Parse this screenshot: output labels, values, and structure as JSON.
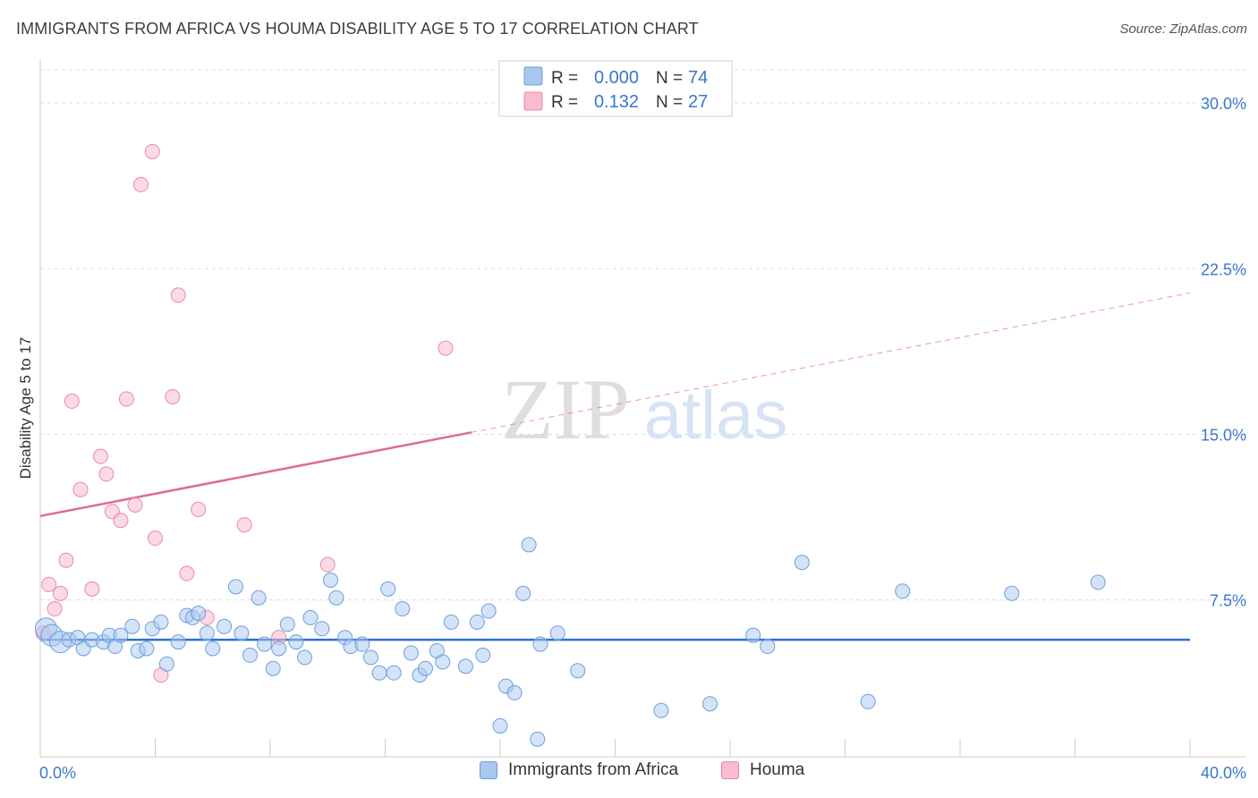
{
  "title": "IMMIGRANTS FROM AFRICA VS HOUMA DISABILITY AGE 5 TO 17 CORRELATION CHART",
  "source": "Source: ZipAtlas.com",
  "watermark": {
    "zip": "ZIP",
    "atlas": "atlas"
  },
  "colors": {
    "blue_fill": "#a9c8f0",
    "blue_stroke": "#6d9fdc",
    "blue_line": "#2f6fd1",
    "pink_fill": "#f7bccd",
    "pink_stroke": "#e88aa8",
    "pink_line": "#e06a91",
    "grid": "#dcdcdc",
    "axis_text": "#3a78c9"
  },
  "legend": [
    {
      "r_label": "R =",
      "r_value": "0.000",
      "n_label": "N =",
      "n_value": "74"
    },
    {
      "r_label": "R =",
      "r_value": "0.132",
      "n_label": "N =",
      "n_value": "27"
    }
  ],
  "series_labels": [
    "Immigrants from Africa",
    "Houma"
  ],
  "chart_data": {
    "type": "scatter",
    "title": "IMMIGRANTS FROM AFRICA VS HOUMA DISABILITY AGE 5 TO 17 CORRELATION CHART",
    "xlabel": "",
    "ylabel": "Disability Age 5 to 17",
    "xlim": [
      0,
      40
    ],
    "ylim": [
      0.4,
      31.5
    ],
    "x_tick_labels": [
      "0.0%",
      "40.0%"
    ],
    "y_ticks": [
      7.5,
      15.0,
      22.5,
      30.0
    ],
    "y_tick_labels": [
      "7.5%",
      "15.0%",
      "22.5%",
      "30.0%"
    ],
    "grid": true,
    "series": [
      {
        "name": "Immigrants from Africa",
        "r": 0.0,
        "n": 74,
        "trend": {
          "x0": 0,
          "y0": 5.7,
          "x1": 40,
          "y1": 5.7
        },
        "points": [
          [
            0.2,
            6.2
          ],
          [
            0.4,
            5.9
          ],
          [
            0.7,
            5.6
          ],
          [
            1.0,
            5.7
          ],
          [
            1.3,
            5.8
          ],
          [
            1.5,
            5.3
          ],
          [
            1.8,
            5.7
          ],
          [
            2.2,
            5.6
          ],
          [
            2.4,
            5.9
          ],
          [
            2.6,
            5.4
          ],
          [
            2.8,
            5.9
          ],
          [
            3.2,
            6.3
          ],
          [
            3.4,
            5.2
          ],
          [
            3.7,
            5.3
          ],
          [
            3.9,
            6.2
          ],
          [
            4.2,
            6.5
          ],
          [
            4.4,
            4.6
          ],
          [
            4.8,
            5.6
          ],
          [
            5.1,
            6.8
          ],
          [
            5.3,
            6.7
          ],
          [
            5.5,
            6.9
          ],
          [
            5.8,
            6.0
          ],
          [
            6.0,
            5.3
          ],
          [
            6.4,
            6.3
          ],
          [
            6.8,
            8.1
          ],
          [
            7.0,
            6.0
          ],
          [
            7.3,
            5.0
          ],
          [
            7.6,
            7.6
          ],
          [
            7.8,
            5.5
          ],
          [
            8.1,
            4.4
          ],
          [
            8.3,
            5.3
          ],
          [
            8.6,
            6.4
          ],
          [
            8.9,
            5.6
          ],
          [
            9.2,
            4.9
          ],
          [
            9.4,
            6.7
          ],
          [
            9.8,
            6.2
          ],
          [
            10.1,
            8.4
          ],
          [
            10.3,
            7.6
          ],
          [
            10.6,
            5.8
          ],
          [
            10.8,
            5.4
          ],
          [
            11.2,
            5.5
          ],
          [
            11.5,
            4.9
          ],
          [
            11.8,
            4.2
          ],
          [
            12.1,
            8.0
          ],
          [
            12.3,
            4.2
          ],
          [
            12.6,
            7.1
          ],
          [
            12.9,
            5.1
          ],
          [
            13.2,
            4.1
          ],
          [
            13.4,
            4.4
          ],
          [
            13.8,
            5.2
          ],
          [
            14.0,
            4.7
          ],
          [
            14.3,
            6.5
          ],
          [
            14.8,
            4.5
          ],
          [
            15.2,
            6.5
          ],
          [
            15.4,
            5.0
          ],
          [
            15.6,
            7.0
          ],
          [
            16.0,
            1.8
          ],
          [
            16.2,
            3.6
          ],
          [
            16.5,
            3.3
          ],
          [
            16.8,
            7.8
          ],
          [
            17.0,
            10.0
          ],
          [
            17.3,
            1.2
          ],
          [
            17.4,
            5.5
          ],
          [
            18.0,
            6.0
          ],
          [
            18.7,
            4.3
          ],
          [
            21.6,
            2.5
          ],
          [
            23.3,
            2.8
          ],
          [
            24.8,
            5.9
          ],
          [
            25.3,
            5.4
          ],
          [
            26.5,
            9.2
          ],
          [
            28.8,
            2.9
          ],
          [
            30.0,
            7.9
          ],
          [
            33.8,
            7.8
          ],
          [
            36.8,
            8.3
          ]
        ]
      },
      {
        "name": "Houma",
        "r": 0.132,
        "n": 27,
        "trend": {
          "x0": 0,
          "y0": 11.3,
          "x1": 40,
          "y1": 21.4,
          "solid_until_x": 15.0
        },
        "points": [
          [
            0.1,
            6.0
          ],
          [
            0.3,
            8.2
          ],
          [
            0.5,
            7.1
          ],
          [
            0.7,
            7.8
          ],
          [
            0.9,
            9.3
          ],
          [
            1.1,
            16.5
          ],
          [
            1.4,
            12.5
          ],
          [
            1.8,
            8.0
          ],
          [
            2.1,
            14.0
          ],
          [
            2.3,
            13.2
          ],
          [
            2.5,
            11.5
          ],
          [
            2.8,
            11.1
          ],
          [
            3.0,
            16.6
          ],
          [
            3.3,
            11.8
          ],
          [
            3.5,
            26.3
          ],
          [
            3.9,
            27.8
          ],
          [
            4.0,
            10.3
          ],
          [
            4.2,
            4.1
          ],
          [
            4.6,
            16.7
          ],
          [
            4.8,
            21.3
          ],
          [
            5.1,
            8.7
          ],
          [
            5.5,
            11.6
          ],
          [
            5.8,
            6.7
          ],
          [
            7.1,
            10.9
          ],
          [
            8.3,
            5.8
          ],
          [
            10.0,
            9.1
          ],
          [
            14.1,
            18.9
          ]
        ]
      }
    ]
  }
}
